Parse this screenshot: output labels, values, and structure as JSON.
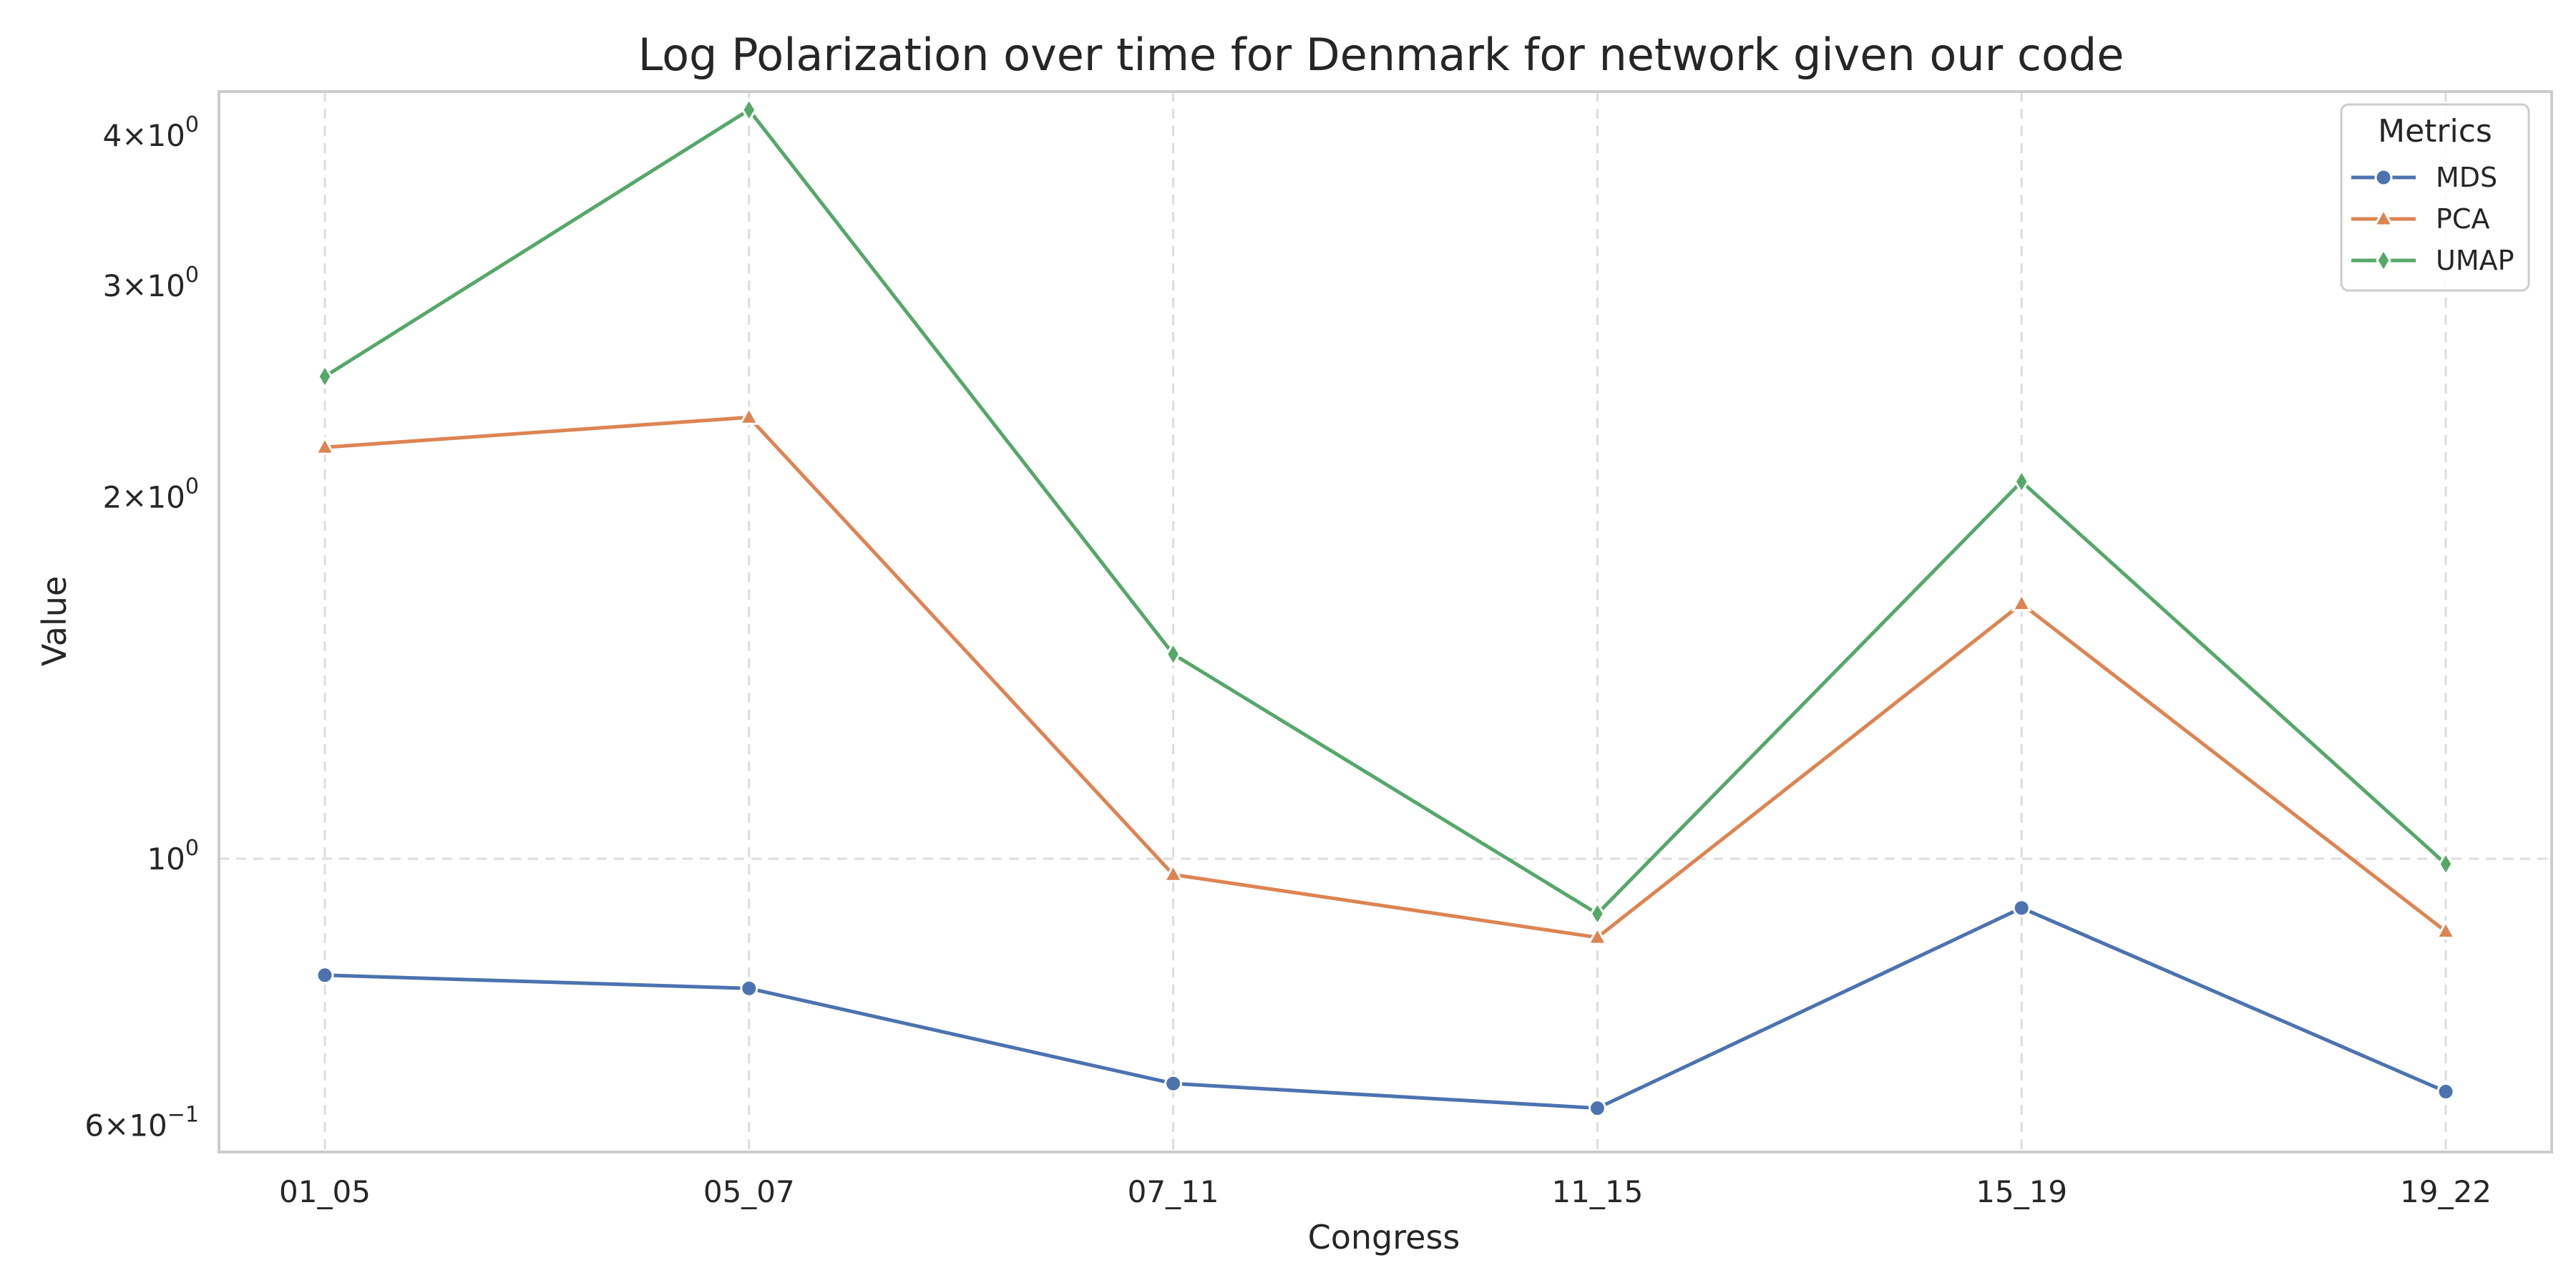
{
  "chart_data": {
    "type": "line",
    "title": "Log Polarization over time for Denmark for network given our code",
    "xlabel": "Congress",
    "ylabel": "Value",
    "yscale": "log",
    "ylim": [
      0.57,
      4.35
    ],
    "grid": true,
    "categories": [
      "01_05",
      "05_07",
      "07_11",
      "11_15",
      "15_19",
      "19_22"
    ],
    "yticks": [
      {
        "value": 0.6,
        "mantissa": "6",
        "exponent": "−1"
      },
      {
        "value": 1,
        "mantissa": "",
        "exponent": "0"
      },
      {
        "value": 2,
        "mantissa": "2",
        "exponent": "0"
      },
      {
        "value": 3,
        "mantissa": "3",
        "exponent": "0"
      },
      {
        "value": 4,
        "mantissa": "4",
        "exponent": "0"
      }
    ],
    "legend": {
      "title": "Metrics",
      "position": "top-right"
    },
    "series": [
      {
        "name": "MDS",
        "color": "#4c72b0",
        "marker": "circle",
        "values": [
          0.8,
          0.78,
          0.65,
          0.62,
          0.91,
          0.64
        ]
      },
      {
        "name": "PCA",
        "color": "#dd8452",
        "marker": "triangle",
        "values": [
          2.2,
          2.33,
          0.97,
          0.86,
          1.63,
          0.87
        ]
      },
      {
        "name": "UMAP",
        "color": "#55a868",
        "marker": "diamond",
        "values": [
          2.52,
          4.2,
          1.48,
          0.9,
          2.06,
          0.99
        ]
      }
    ]
  }
}
